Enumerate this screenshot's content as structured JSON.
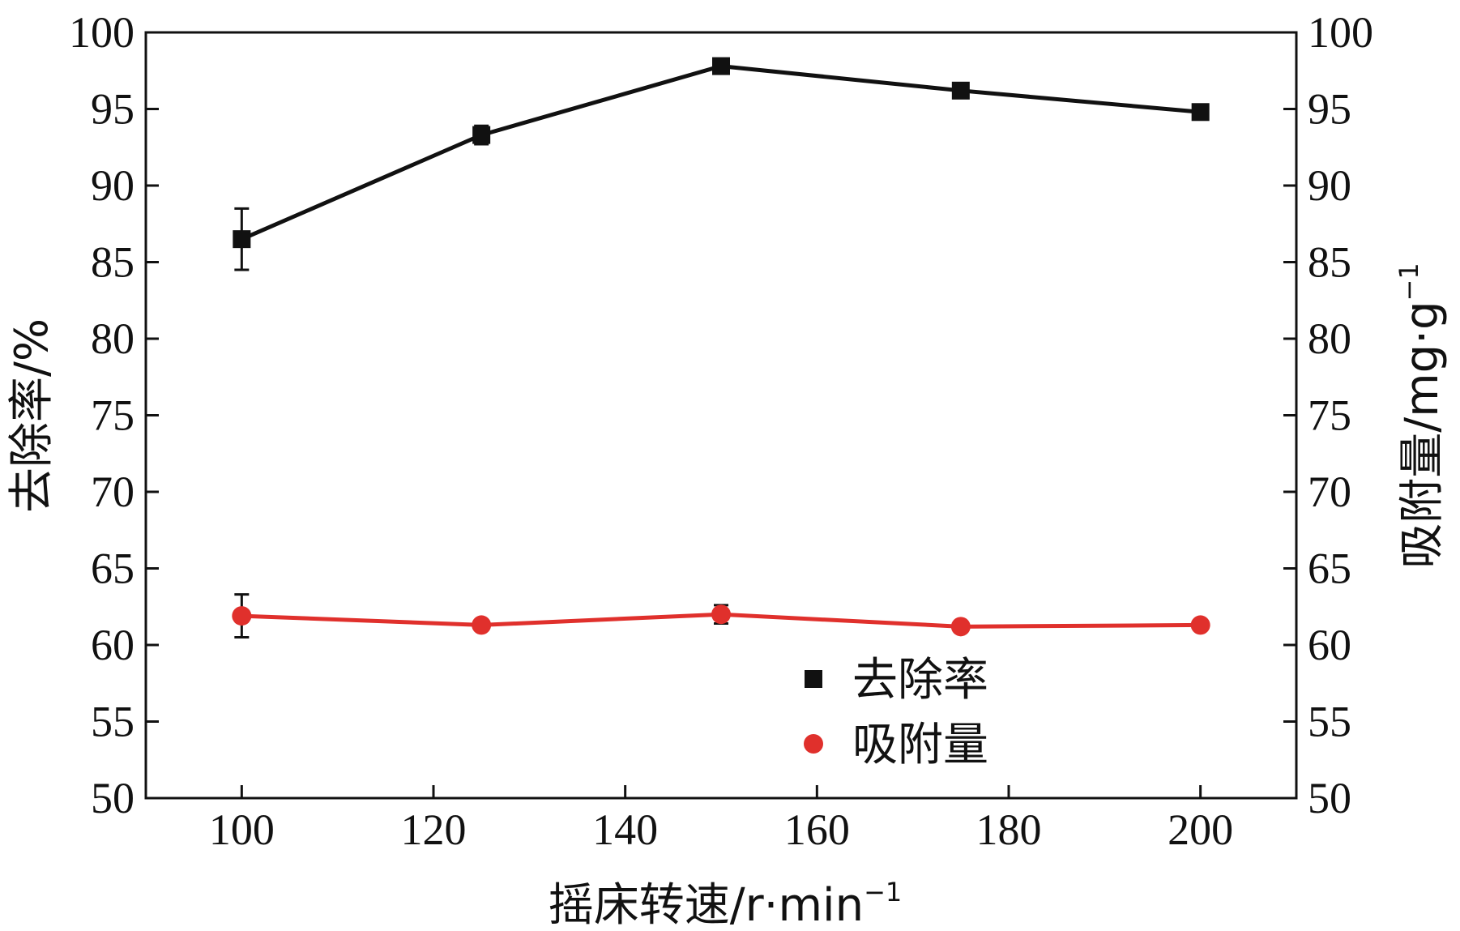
{
  "chart_data": {
    "type": "line",
    "title": "",
    "xlabel": "摇床转速/r·min",
    "xlabel_sup": "−1",
    "ylabel_left": "去除率/%",
    "ylabel_right": "吸附量/mg·g",
    "ylabel_right_sup": "−1",
    "x": [
      100,
      125,
      150,
      175,
      200
    ],
    "xlim": [
      90,
      210
    ],
    "x_ticks": [
      100,
      120,
      140,
      160,
      180,
      200
    ],
    "ylim": [
      50,
      100
    ],
    "y_ticks": [
      50,
      55,
      60,
      65,
      70,
      75,
      80,
      85,
      90,
      95,
      100
    ],
    "y2lim": [
      50,
      100
    ],
    "y2_ticks": [
      50,
      55,
      60,
      65,
      70,
      75,
      80,
      85,
      90,
      95,
      100
    ],
    "grid": false,
    "legend_position": "bottom-center",
    "series": [
      {
        "name": "去除率",
        "axis": "left",
        "marker": "square",
        "color": "#111111",
        "values": [
          86.5,
          93.3,
          97.8,
          96.2,
          94.8
        ],
        "errors": [
          2.0,
          0.6,
          0.2,
          0.2,
          0.2
        ]
      },
      {
        "name": "吸附量",
        "axis": "right",
        "marker": "circle",
        "color": "#e0302c",
        "values": [
          61.9,
          61.3,
          62.0,
          61.2,
          61.3
        ],
        "errors": [
          1.4,
          0.3,
          0.6,
          0.2,
          0.2
        ]
      }
    ]
  }
}
